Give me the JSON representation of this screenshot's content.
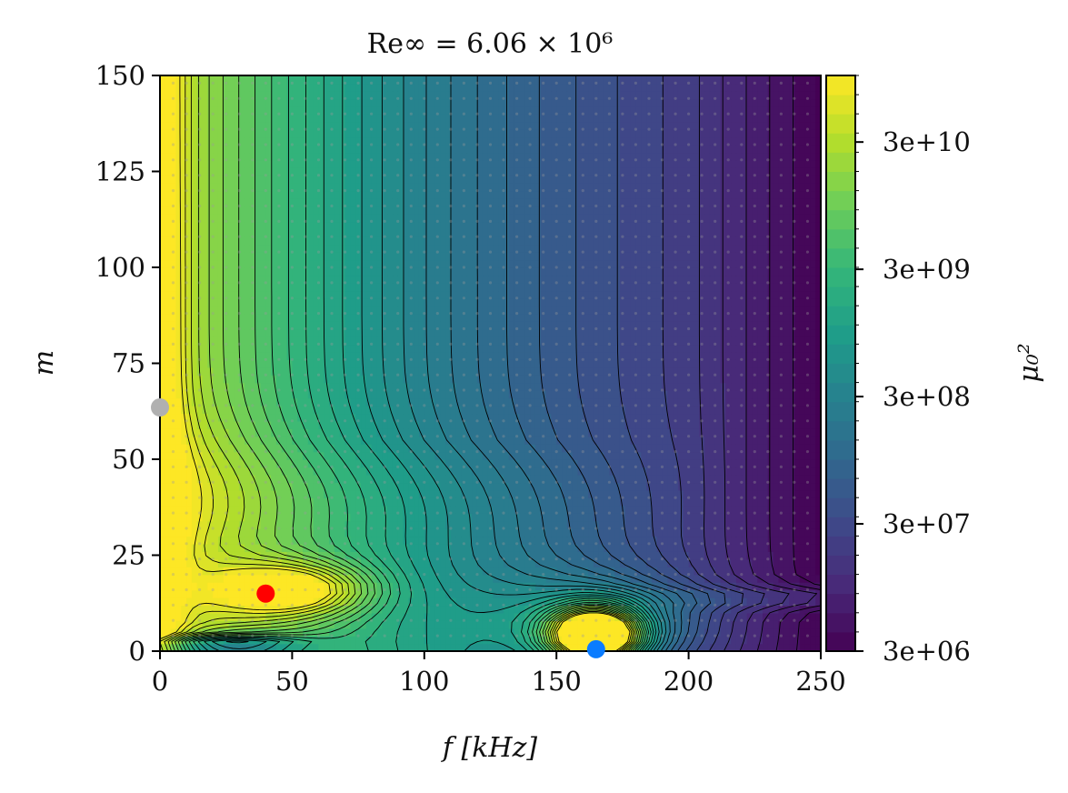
{
  "chart_data": {
    "type": "heatmap",
    "title": "Re∞ = 6.06 × 10⁶",
    "xlabel": "f [kHz]",
    "ylabel": "m",
    "colorbar_label": "μ₀²",
    "xlim": [
      0,
      250
    ],
    "ylim": [
      0,
      150
    ],
    "x_ticks": [
      0,
      50,
      100,
      150,
      200,
      250
    ],
    "y_ticks": [
      0,
      25,
      50,
      75,
      100,
      125,
      150
    ],
    "colorbar_scale": "log",
    "colorbar_range": [
      3000000,
      100000000000
    ],
    "colorbar_ticks": [
      {
        "value": 3000000,
        "label": "3e+06"
      },
      {
        "value": 30000000,
        "label": "3e+07"
      },
      {
        "value": 300000000,
        "label": "3e+08"
      },
      {
        "value": 3000000000,
        "label": "3e+09"
      },
      {
        "value": 30000000000,
        "label": "3e+10"
      }
    ],
    "colormap": "viridis",
    "contour_lines": true,
    "grid": false,
    "markers": [
      {
        "f": 0,
        "m": 63.5,
        "color": "#b0b0b0"
      },
      {
        "f": 40,
        "m": 15,
        "color": "#ff0000"
      },
      {
        "f": 165,
        "m": 0.5,
        "color": "#0a7cff"
      }
    ]
  },
  "colors": {
    "viridis": [
      "#440154",
      "#482878",
      "#3e4989",
      "#31688e",
      "#26828e",
      "#1f9e89",
      "#35b779",
      "#6ece58",
      "#b5de2b",
      "#fde725"
    ]
  }
}
